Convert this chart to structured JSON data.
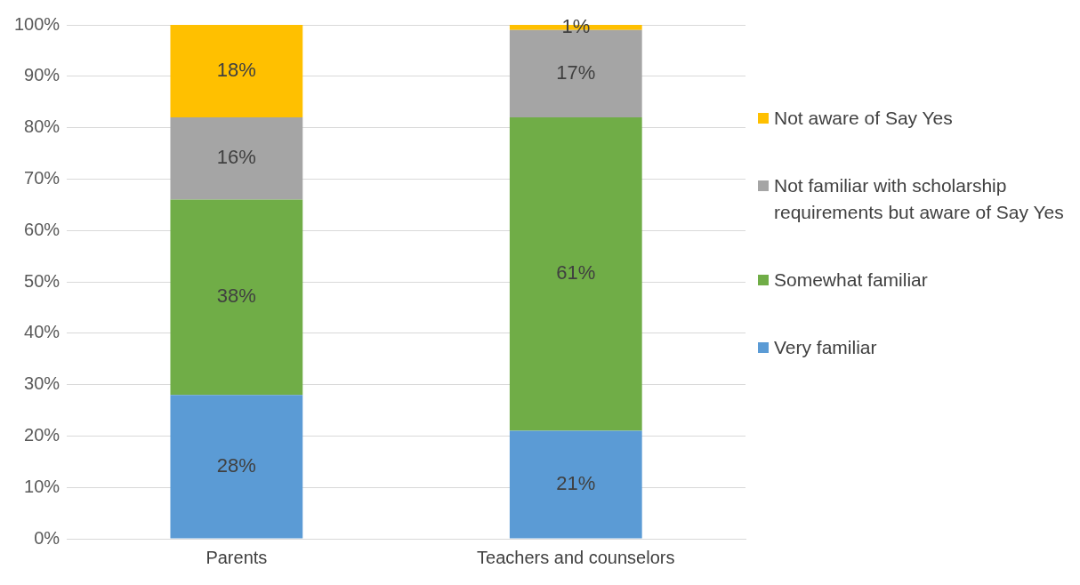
{
  "chart_data": {
    "type": "bar",
    "stacked": true,
    "categories": [
      "Parents",
      "Teachers and counselors"
    ],
    "series": [
      {
        "name": "Very familiar",
        "color": "#5b9bd5",
        "values": [
          28,
          21
        ],
        "value_labels": [
          "28%",
          "21%"
        ]
      },
      {
        "name": "Somewhat familiar",
        "color": "#70ad47",
        "values": [
          38,
          61
        ],
        "value_labels": [
          "38%",
          "61%"
        ]
      },
      {
        "name": "Not familiar with scholarship requirements but aware of Say Yes",
        "color": "#a5a5a5",
        "values": [
          16,
          17
        ],
        "value_labels": [
          "16%",
          "17%"
        ]
      },
      {
        "name": "Not aware of Say Yes",
        "color": "#ffc000",
        "values": [
          18,
          1
        ],
        "value_labels": [
          "18%",
          "1%"
        ]
      }
    ],
    "ylim": [
      0,
      100
    ],
    "yticks": [
      {
        "value": 0,
        "label": "0%"
      },
      {
        "value": 10,
        "label": "10%"
      },
      {
        "value": 20,
        "label": "20%"
      },
      {
        "value": 30,
        "label": "30%"
      },
      {
        "value": 40,
        "label": "40%"
      },
      {
        "value": 50,
        "label": "50%"
      },
      {
        "value": 60,
        "label": "60%"
      },
      {
        "value": 70,
        "label": "70%"
      },
      {
        "value": 80,
        "label": "80%"
      },
      {
        "value": 90,
        "label": "90%"
      },
      {
        "value": 100,
        "label": "100%"
      }
    ],
    "grid": "y",
    "legend": "right"
  }
}
